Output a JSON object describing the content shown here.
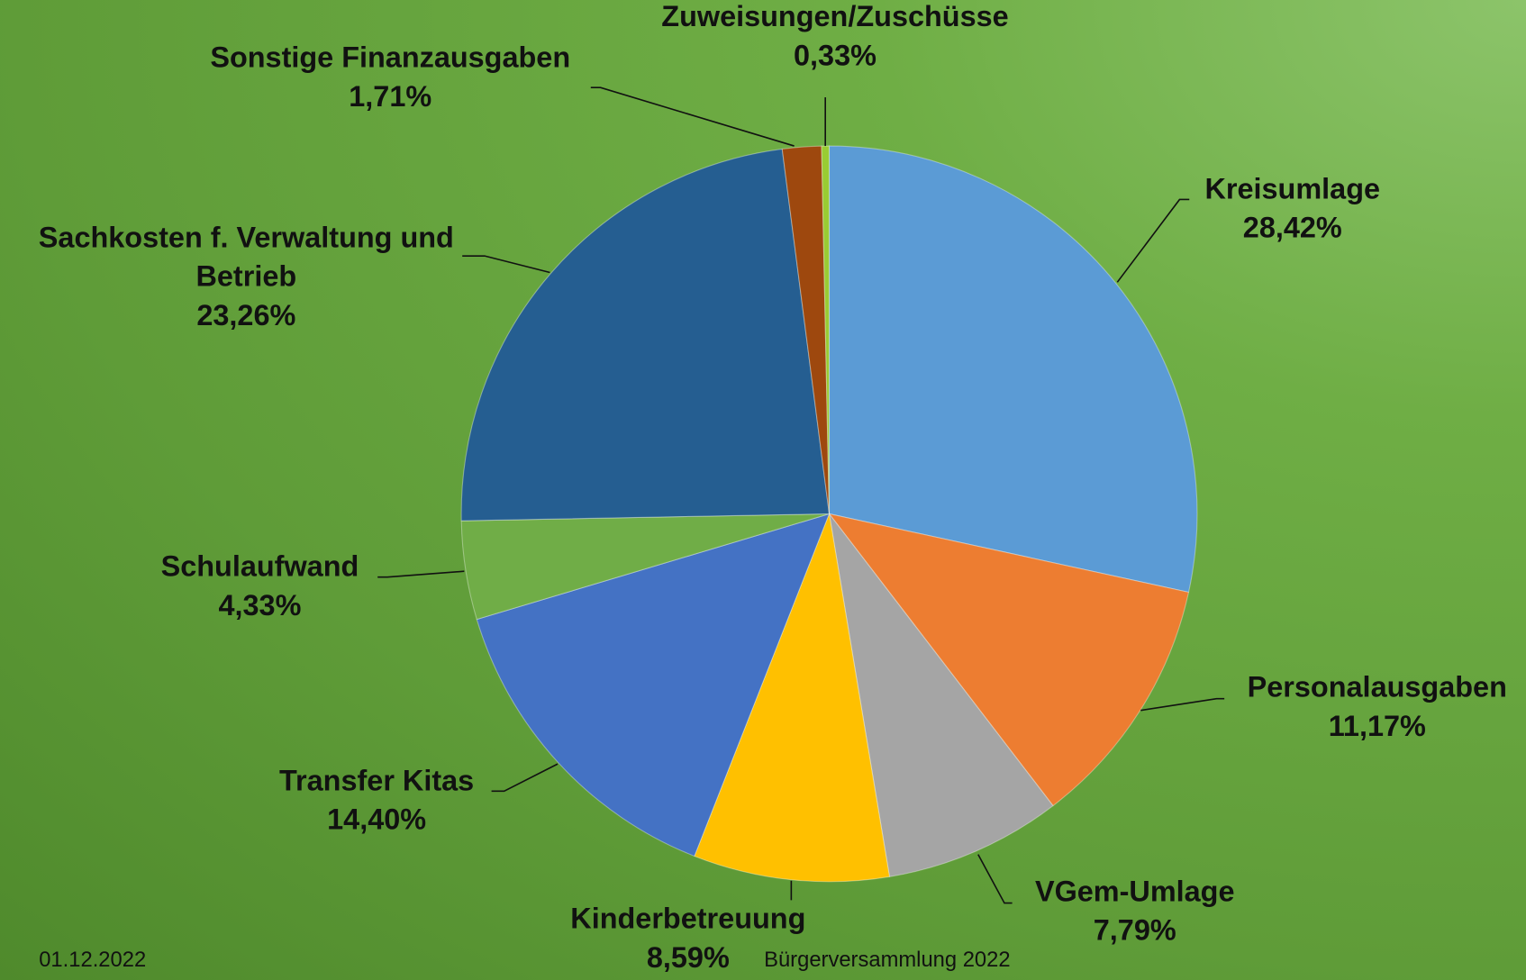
{
  "chart_data": {
    "type": "pie",
    "categories": [
      "Kreisumlage",
      "Personalausgaben",
      "VGem-Umlage",
      "Kinderbetreuung",
      "Transfer Kitas",
      "Schulaufwand",
      "Sachkosten f. Verwaltung und Betrieb",
      "Sonstige Finanzausgaben",
      "Zuweisungen/Zuschüsse"
    ],
    "values": [
      28.42,
      11.17,
      7.79,
      8.59,
      14.4,
      4.33,
      23.26,
      1.71,
      0.33
    ],
    "value_labels": [
      "28,42%",
      "11,17%",
      "7,79%",
      "8,59%",
      "14,40%",
      "4,33%",
      "23,26%",
      "1,71%",
      "0,33%"
    ],
    "colors": [
      "#5b9bd5",
      "#ed7d31",
      "#a5a5a5",
      "#ffc000",
      "#4472c4",
      "#70ad47",
      "#255e91",
      "#9e480e",
      "#99cc33"
    ]
  },
  "footer": {
    "date": "01.12.2022",
    "event": "Bürgerversammlung 2022"
  }
}
